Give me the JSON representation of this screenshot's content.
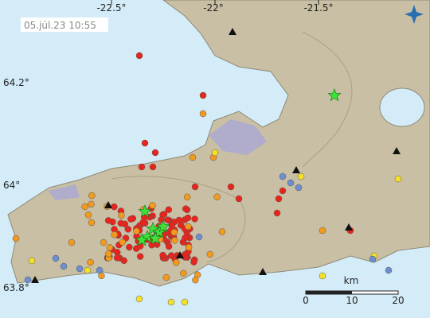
{
  "header": {
    "timestamp": "05.júl.23  10:55"
  },
  "longitude_labels": [
    "-22.5°",
    "-22°",
    "-21.5°"
  ],
  "latitude_labels": [
    "64.2°",
    "64°",
    "63.8°"
  ],
  "scale_bar": {
    "unit": "km",
    "ticks": [
      0,
      10,
      20
    ]
  }
}
